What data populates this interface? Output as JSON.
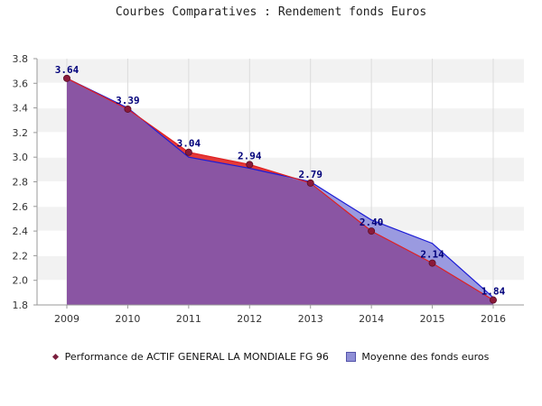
{
  "chart_data": {
    "type": "area",
    "title": "Courbes Comparatives : Rendement fonds Euros",
    "xlabel": "",
    "ylabel": "",
    "x": [
      "2009",
      "2010",
      "2011",
      "2012",
      "2013",
      "2014",
      "2015",
      "2016"
    ],
    "ylim": [
      1.8,
      3.8
    ],
    "yticks": [
      "1.8",
      "2.0",
      "2.2",
      "2.4",
      "2.6",
      "2.8",
      "3.0",
      "3.2",
      "3.4",
      "3.6",
      "3.8"
    ],
    "grid": true,
    "legend_position": "bottom",
    "series": [
      {
        "name": "Performance de ACTIF GENERAL LA MONDIALE FG 96",
        "values": [
          3.64,
          3.39,
          3.04,
          2.94,
          2.79,
          2.4,
          2.14,
          1.84
        ],
        "data_labels": [
          "3.64",
          "3.39",
          "3.04",
          "2.94",
          "2.79",
          "2.40",
          "2.14",
          "1.84"
        ],
        "color": "#e02020",
        "marker_color": "#8b1a3a"
      },
      {
        "name": "Moyenne des fonds euros",
        "values": [
          3.64,
          3.4,
          3.0,
          2.91,
          2.8,
          2.49,
          2.3,
          1.86
        ],
        "color": "#1c1cd6"
      }
    ],
    "colors": {
      "overlap_fill": "#8a55a3",
      "band_light": "#f2f2f2",
      "band_white": "#ffffff"
    }
  }
}
